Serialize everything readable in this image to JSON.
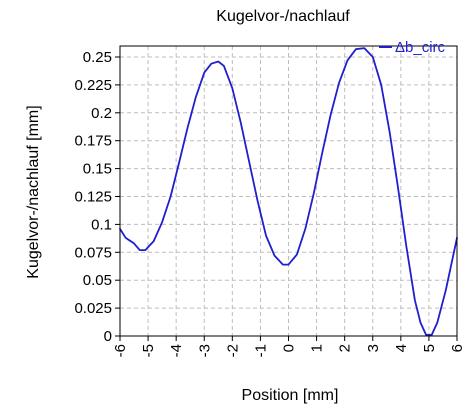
{
  "chart_data": {
    "type": "line",
    "title": "Kugelvor-/nachlauf",
    "xlabel": "Position [mm]",
    "ylabel": "Kugelvor-/nachlauf [mm]",
    "xlim": [
      -6,
      6
    ],
    "ylim": [
      0,
      0.26
    ],
    "xticks": [
      "-6",
      "-5",
      "-4",
      "-3",
      "-2",
      "-1",
      "0",
      "1",
      "2",
      "3",
      "4",
      "5",
      "6"
    ],
    "yticks": [
      "0",
      "0.025",
      "0.05",
      "0.075",
      "0.1",
      "0.125",
      "0.15",
      "0.175",
      "0.2",
      "0.225",
      "0.25"
    ],
    "grid": true,
    "legend_position": "top-right",
    "series": [
      {
        "name": "Δb_circ",
        "color": "#1f1fd0",
        "x": [
          -6.0,
          -5.8,
          -5.5,
          -5.3,
          -5.1,
          -4.8,
          -4.5,
          -4.2,
          -3.9,
          -3.6,
          -3.3,
          -3.0,
          -2.75,
          -2.5,
          -2.3,
          -2.0,
          -1.7,
          -1.4,
          -1.1,
          -0.8,
          -0.5,
          -0.2,
          0.0,
          0.3,
          0.6,
          0.9,
          1.2,
          1.5,
          1.8,
          2.1,
          2.4,
          2.7,
          3.0,
          3.3,
          3.6,
          3.9,
          4.2,
          4.5,
          4.7,
          4.9,
          5.1,
          5.3,
          5.6,
          6.0
        ],
        "y": [
          0.096,
          0.088,
          0.083,
          0.077,
          0.077,
          0.085,
          0.102,
          0.125,
          0.155,
          0.186,
          0.214,
          0.236,
          0.244,
          0.246,
          0.242,
          0.222,
          0.191,
          0.156,
          0.121,
          0.09,
          0.072,
          0.064,
          0.064,
          0.073,
          0.096,
          0.128,
          0.164,
          0.198,
          0.227,
          0.247,
          0.257,
          0.258,
          0.25,
          0.225,
          0.183,
          0.133,
          0.08,
          0.032,
          0.012,
          0.001,
          0.001,
          0.012,
          0.041,
          0.088
        ]
      }
    ]
  }
}
